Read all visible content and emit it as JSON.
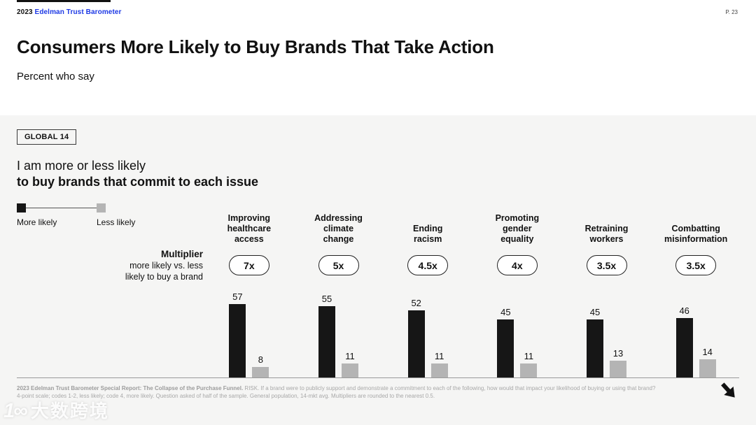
{
  "page": {
    "brand_year": "2023",
    "brand_name": "Edelman Trust Barometer",
    "page_number": "P. 23",
    "title": "Consumers More Likely to Buy Brands That Take Action",
    "subtitle": "Percent who say"
  },
  "section": {
    "badge": "GLOBAL 14",
    "heading_line1": "I am more or less likely",
    "heading_line2": "to buy brands that commit to each issue",
    "legend": {
      "more_label": "More likely",
      "less_label": "Less likely"
    },
    "multiplier_label": {
      "title": "Multiplier",
      "line1": "more likely vs. less",
      "line2": "likely to buy a brand"
    }
  },
  "chart_data": {
    "type": "bar",
    "categories": [
      "Improving healthcare access",
      "Addressing climate change",
      "Ending racism",
      "Promoting gender equality",
      "Retraining workers",
      "Combatting misinformation"
    ],
    "multipliers": [
      "7x",
      "5x",
      "4.5x",
      "4x",
      "3.5x",
      "3.5x"
    ],
    "series": [
      {
        "name": "More likely",
        "color": "#161616",
        "values": [
          57,
          55,
          52,
          45,
          45,
          46
        ]
      },
      {
        "name": "Less likely",
        "color": "#b4b4b4",
        "values": [
          8,
          11,
          11,
          11,
          13,
          14
        ]
      }
    ],
    "ylim": [
      0,
      60
    ],
    "grid": "off",
    "legend_position": "top-left",
    "value_labels": "above-bars"
  },
  "footer": {
    "bold": "2023 Edelman Trust Barometer Special Report: The Collapse of the Purchase Funnel.",
    "text": " RISK. If a brand were to publicly support and demonstrate a commitment to each of the following, how would that impact your likelihood of buying or using that brand? 4-point scale; codes 1-2, less likely; code 4, more likely. Question asked of half of the sample. General population, 14-mkt avg. Multipliers are rounded to the nearest 0.5."
  },
  "watermark": {
    "logo": "1∞",
    "text": "大数跨境"
  },
  "colors": {
    "brand_blue": "#1d39e5",
    "bar_black": "#161616",
    "bar_gray": "#b4b4b4",
    "background_gray": "#f5f5f4"
  }
}
